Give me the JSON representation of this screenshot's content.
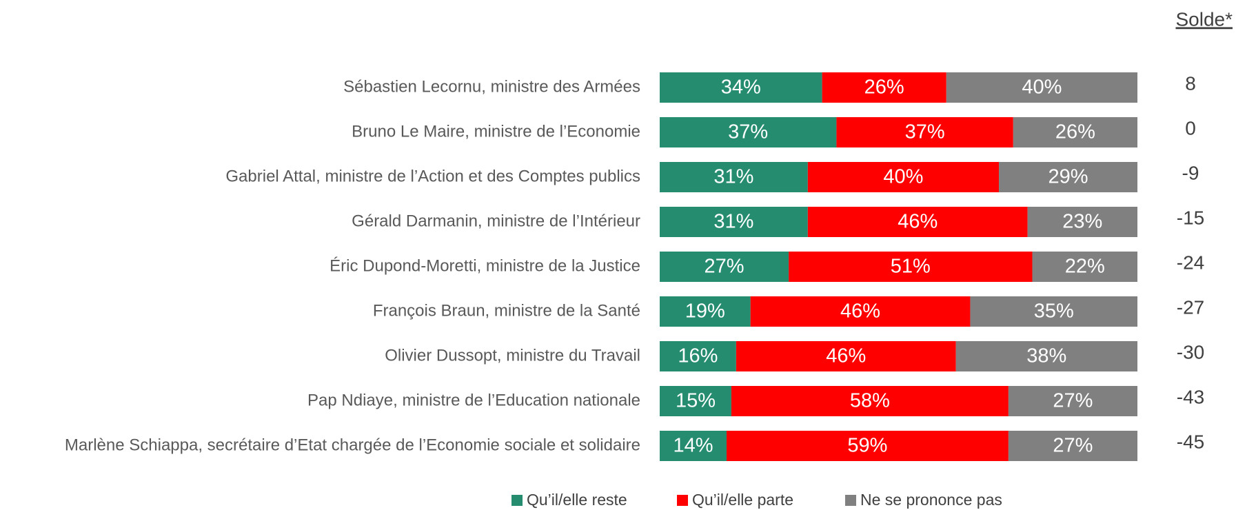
{
  "chart_data": {
    "type": "stacked_bar_horizontal",
    "categories": [
      "Sébastien Lecornu, ministre des Armées",
      "Bruno Le Maire, ministre de l’Economie",
      "Gabriel Attal, ministre de l’Action et des Comptes publics",
      "Gérald Darmanin, ministre de l’Intérieur",
      "Éric Dupond-Moretti, ministre de la Justice",
      "François Braun, ministre de la Santé",
      "Olivier Dussopt, ministre du Travail",
      "Pap Ndiaye, ministre de l’Education nationale",
      "Marlène Schiappa, secrétaire d’Etat chargée de l’Economie sociale et solidaire"
    ],
    "xlim": [
      0,
      100
    ],
    "series": [
      {
        "name": "Qu’il/elle reste",
        "color": "#258c70",
        "values": [
          34,
          37,
          31,
          31,
          27,
          19,
          16,
          15,
          14
        ],
        "value_labels": [
          "34%",
          "37%",
          "31%",
          "31%",
          "27%",
          "19%",
          "16%",
          "15%",
          "14%"
        ]
      },
      {
        "name": "Qu’il/elle parte",
        "color": "#ff0000",
        "values": [
          26,
          37,
          40,
          46,
          51,
          46,
          46,
          58,
          59
        ],
        "value_labels": [
          "26%",
          "37%",
          "40%",
          "46%",
          "51%",
          "46%",
          "46%",
          "58%",
          "59%"
        ]
      },
      {
        "name": "Ne se prononce pas",
        "color": "#808080",
        "values": [
          40,
          26,
          29,
          23,
          22,
          35,
          38,
          27,
          27
        ],
        "value_labels": [
          "40%",
          "26%",
          "29%",
          "23%",
          "22%",
          "35%",
          "38%",
          "27%",
          "27%"
        ]
      }
    ],
    "solde_title": "Solde*",
    "solde": [
      8,
      0,
      -9,
      -15,
      -24,
      -27,
      -30,
      -43,
      -45
    ],
    "legend": "bottom"
  }
}
